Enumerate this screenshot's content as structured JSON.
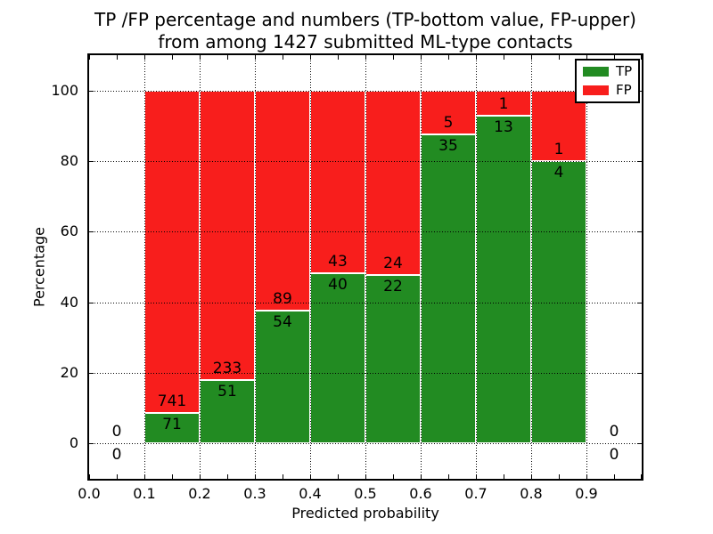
{
  "title": {
    "line1": "TP /FP percentage and numbers (TP-bottom value, FP-upper)",
    "line2": "from among 1427 submitted ML-type contacts"
  },
  "chart_data": {
    "type": "bar",
    "stacked": true,
    "title": "TP /FP percentage and numbers (TP-bottom value, FP-upper) from among 1427 submitted ML-type contacts",
    "xlabel": "Predicted probability",
    "ylabel": "Percentage",
    "xlim": [
      0.0,
      1.0
    ],
    "ylim": [
      -10,
      110
    ],
    "grid": "dotted",
    "total_contacts": 1427,
    "xticks": [
      0.0,
      0.1,
      0.2,
      0.3,
      0.4,
      0.5,
      0.6,
      0.7,
      0.8,
      0.9
    ],
    "xtick_labels": [
      "0.0",
      "0.1",
      "0.2",
      "0.3",
      "0.4",
      "0.5",
      "0.6",
      "0.7",
      "0.8",
      "0.9"
    ],
    "yticks": [
      0,
      20,
      40,
      60,
      80,
      100
    ],
    "ytick_labels": [
      "0",
      "20",
      "40",
      "60",
      "80",
      "100"
    ],
    "colors": {
      "tp": "#228b22",
      "fp": "#f81e1c",
      "bar_edge": "#ffffff"
    },
    "legend": {
      "position": "upper right",
      "entries": [
        {
          "label": "TP",
          "color": "#228b22"
        },
        {
          "label": "FP",
          "color": "#f81e1c"
        }
      ]
    },
    "bins": [
      {
        "range": [
          0.0,
          0.1
        ],
        "tp": 0,
        "fp": 0
      },
      {
        "range": [
          0.1,
          0.2
        ],
        "tp": 71,
        "fp": 741
      },
      {
        "range": [
          0.2,
          0.3
        ],
        "tp": 51,
        "fp": 233
      },
      {
        "range": [
          0.3,
          0.4
        ],
        "tp": 54,
        "fp": 89
      },
      {
        "range": [
          0.4,
          0.5
        ],
        "tp": 40,
        "fp": 43
      },
      {
        "range": [
          0.5,
          0.6
        ],
        "tp": 22,
        "fp": 24
      },
      {
        "range": [
          0.6,
          0.7
        ],
        "tp": 35,
        "fp": 5
      },
      {
        "range": [
          0.7,
          0.8
        ],
        "tp": 13,
        "fp": 1
      },
      {
        "range": [
          0.8,
          0.9
        ],
        "tp": 4,
        "fp": 1
      },
      {
        "range": [
          0.9,
          1.0
        ],
        "tp": 0,
        "fp": 0
      }
    ]
  }
}
